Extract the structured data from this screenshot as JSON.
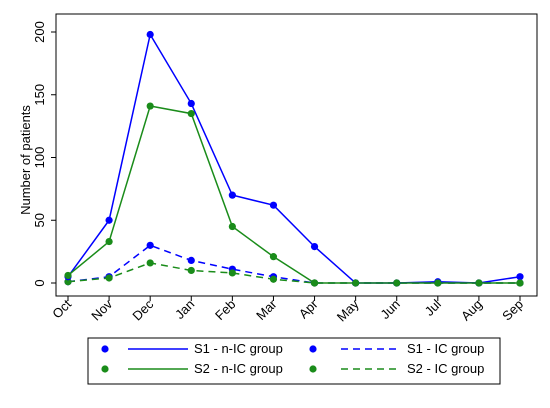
{
  "chart_data": {
    "type": "line",
    "ylabel": "Number of patients",
    "xlabel": "",
    "categories": [
      "Oct",
      "Nov",
      "Dec",
      "Jan",
      "Feb",
      "Mar",
      "Apr",
      "May",
      "Jun",
      "Jul",
      "Aug",
      "Sep"
    ],
    "ylim": [
      0,
      200
    ],
    "yticks": [
      "0",
      "50",
      "100",
      "150",
      "200"
    ],
    "grid": false,
    "legend_position": "bottom",
    "series": [
      {
        "name": "S1 - n-IC group",
        "color": "#0000ff",
        "dash": "solid",
        "values": [
          5,
          50,
          198,
          143,
          70,
          62,
          29,
          0,
          0,
          1,
          0,
          5
        ]
      },
      {
        "name": "S2 - n-IC group",
        "color": "#1a8c1a",
        "dash": "solid",
        "values": [
          6,
          33,
          141,
          135,
          45,
          21,
          0,
          0,
          0,
          0,
          0,
          0
        ]
      },
      {
        "name": "S1 - IC group",
        "color": "#0000ff",
        "dash": "dashed",
        "values": [
          1,
          5,
          30,
          18,
          11,
          5,
          0,
          0,
          0,
          0,
          0,
          0
        ]
      },
      {
        "name": "S2 - IC group",
        "color": "#1a8c1a",
        "dash": "dashed",
        "values": [
          1,
          4,
          16,
          10,
          8,
          3,
          0,
          0,
          0,
          0,
          0,
          0
        ]
      }
    ]
  }
}
